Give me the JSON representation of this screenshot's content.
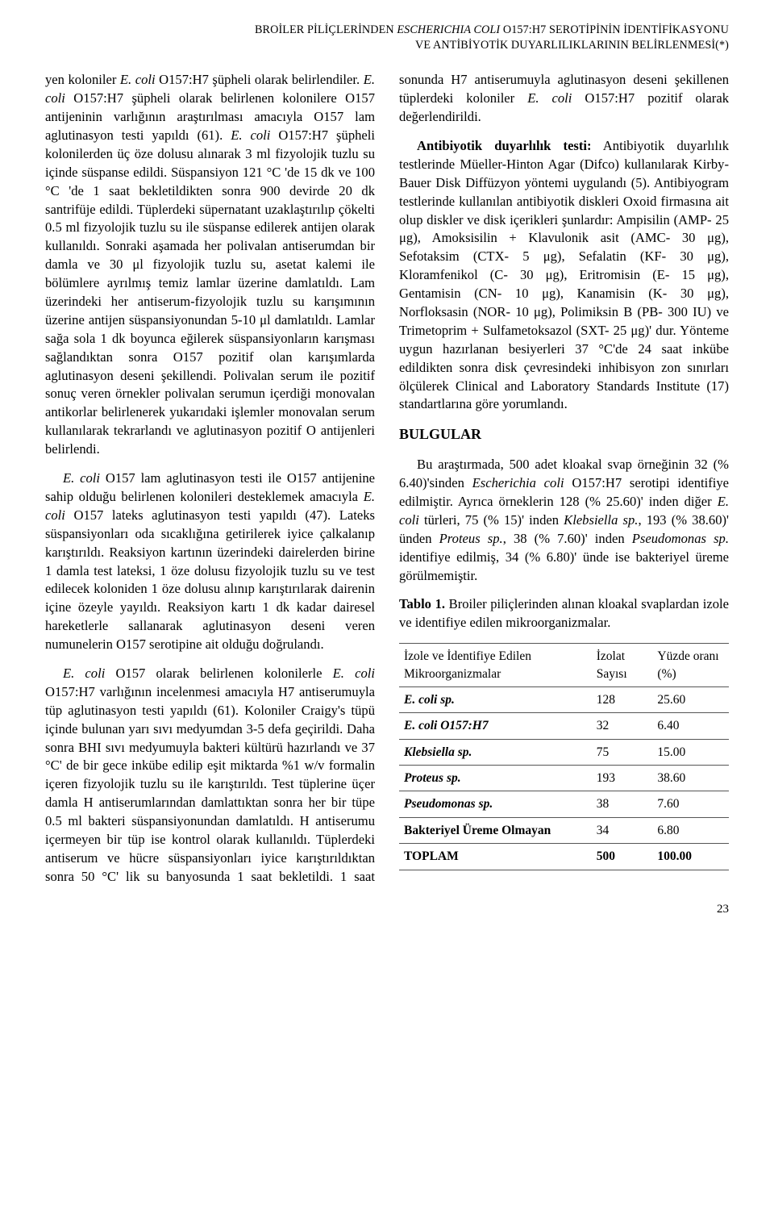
{
  "header": {
    "line1_pre": "BROİLER PİLİÇLERİNDEN ",
    "line1_italic": "ESCHERICHIA COLI",
    "line1_post": "  O157:H7 SEROTİPİNİN İDENTİFİKASYONU",
    "line2": "VE ANTİBİYOTİK DUYARLILIKLARININ BELİRLENMESİ(*)"
  },
  "paragraphs": {
    "p1_a": "yen koloniler ",
    "p1_b": "E. coli",
    "p1_c": " O157:H7 şüpheli olarak belirlendiler. ",
    "p1_d": "E. coli",
    "p1_e": " O157:H7 şüpheli olarak belirlenen kolonilere O157 antijeninin varlığının araştırılması amacıyla O157 lam aglutinasyon testi yapıldı (61). ",
    "p1_f": "E. coli",
    "p1_g": " O157:H7 şüpheli kolonilerden üç öze dolusu alınarak 3 ml fizyolojik tuzlu su içinde süspanse edildi. Süspansiyon 121 °C 'de 15 dk ve 100 °C 'de 1 saat bekletildikten sonra 900 devirde 20 dk santrifüje edildi. Tüplerdeki süpernatant uzaklaştırılıp çökelti 0.5 ml fizyolojik tuzlu su ile süspanse edilerek antijen olarak kullanıldı. Sonraki aşamada her polivalan antiserumdan bir damla ve 30 μl fizyolojik tuzlu su, asetat kalemi ile bölümlere ayrılmış temiz lamlar üzerine damlatıldı. Lam üzerindeki her antiserum-fizyolojik tuzlu su karışımının üzerine antijen süspansiyonundan 5-10 μl damlatıldı. Lamlar sağa sola 1 dk boyunca eğilerek süspansiyonların karışması sağlandıktan sonra O157 pozitif olan karışımlarda aglutinasyon deseni şekillendi. Polivalan serum ile pozitif sonuç veren örnekler polivalan serumun içerdiği monovalan antikorlar belirlenerek yukarıdaki işlemler monovalan serum kullanılarak tekrarlandı ve aglutinasyon pozitif O antijenleri belirlendi.",
    "p2_a": "E. coli",
    "p2_b": " O157 lam aglutinasyon testi ile O157 antijenine sahip olduğu belirlenen kolonileri desteklemek amacıyla ",
    "p2_c": "E. coli",
    "p2_d": " O157 lateks aglutinasyon testi yapıldı (47). Lateks süspansiyonları oda sıcaklığına getirilerek iyice çalkalanıp karıştırıldı. Reaksiyon kartının üzerindeki dairelerden birine 1 damla test lateksi, 1 öze dolusu fizyolojik tuzlu su ve test edilecek koloniden 1 öze dolusu alınıp karıştırılarak dairenin içine özeyle yayıldı. Reaksiyon kartı 1 dk kadar dairesel hareketlerle sallanarak aglutinasyon deseni veren numunelerin O157 serotipine ait olduğu doğrulandı.",
    "p3_a": "E. coli",
    "p3_b": " O157 olarak belirlenen kolonilerle ",
    "p3_c": "E. coli",
    "p3_d": " O157:H7 varlığının incelenmesi amacıyla H7 antiserumuyla tüp aglutinasyon testi yapıldı (61). Koloniler Craigy's tüpü içinde bulunan yarı sıvı medyumdan 3-5 defa geçirildi. Daha sonra BHI sıvı medyumuyla bakteri kültürü hazırlandı ve 37 °C' de bir gece inkübe edilip eşit miktarda %1 w/v formalin içeren fizyolojik tuzlu su ile karıştırıldı. Test tüplerine üçer damla H antiserumlarından damlattıktan sonra her bir tüpe 0.5 ml bakteri süspansiyonundan damlatıldı. H antiserumu içer",
    "p3_cont": "meyen bir tüp ise kontrol olarak kullanıldı. Tüplerdeki antiserum ve hücre süspansiyonları iyice karıştırıldıktan sonra 50 °C' lik su banyosunda 1 saat bekletildi. 1 saat sonunda H7 antiserumuyla aglutinasyon deseni şekillenen tüplerdeki koloniler ",
    "p3_e": "E. coli",
    "p3_f": " O157:H7 pozitif olarak değerlendirildi.",
    "p4_label": "Antibiyotik duyarlılık testi:",
    "p4_body": " Antibiyotik duyarlılık testlerinde Müeller-Hinton Agar (Difco) kullanılarak Kirby-Bauer Disk Diffüzyon yöntemi uygulandı (5). Antibiyogram testlerinde kullanılan antibiyotik diskleri Oxoid firmasına ait olup diskler ve disk içerikleri şunlardır: Ampisilin (AMP- 25 μg), Amoksisilin + Klavulonik asit (AMC- 30 μg), Sefotaksim (CTX- 5 μg), Sefalatin (KF- 30 μg), Kloramfenikol (C- 30 μg), Eritromisin (E- 15 μg), Gentamisin (CN- 10 μg), Kanamisin (K- 30 μg), Norfloksasin (NOR- 10 μg), Polimiksin B (PB- 300 IU) ve Trimetoprim + Sulfametoksazol (SXT- 25 μg)' dur. Yönteme uygun hazırlanan besiyerleri 37 °C'de 24 saat inkübe edildikten sonra disk çevresindeki inhibisyon zon sınırları ölçülerek Clinical and Laboratory Standards Institute (17) standartlarına göre yorumlandı.",
    "bulgular_heading": "BULGULAR",
    "p5_a": "Bu araştırmada, 500 adet kloakal svap örneğinin 32 (% 6.40)'sinden ",
    "p5_b": "Escherichia coli",
    "p5_c": " O157:H7 serotipi identifiye edilmiştir. Ayrıca örneklerin 128 (% 25.60)' inden diğer ",
    "p5_d": "E. coli",
    "p5_e": " türleri, 75 (% 15)' inden ",
    "p5_f": "Klebsiella sp.",
    "p5_g": ", 193 (% 38.60)' ünden ",
    "p5_h": "Proteus sp.",
    "p5_i": ", 38 (% 7.60)' inden ",
    "p5_j": "Pseudomonas sp.",
    "p5_k": " identifiye edilmiş, 34 (% 6.80)' ünde ise bakteriyel üreme görülmemiştir."
  },
  "table": {
    "caption_label": "Tablo 1.",
    "caption_text": " Broiler piliçlerinden alınan kloakal svaplardan izole ve identifiye edilen mikroorganizmalar.",
    "headers": {
      "col1": "İzole ve İdentifiye Edilen Mikroorganizmalar",
      "col2": "İzolat Sayısı",
      "col3": "Yüzde oranı (%)"
    },
    "rows": [
      {
        "name": "E. coli sp.",
        "isolate": "128",
        "percent": "25.60",
        "italic": true
      },
      {
        "name": "E. coli O157:H7",
        "isolate": "32",
        "percent": "6.40",
        "italic_partial": true
      },
      {
        "name": "Klebsiella sp.",
        "isolate": "75",
        "percent": "15.00",
        "italic": true
      },
      {
        "name": "Proteus sp.",
        "isolate": "193",
        "percent": "38.60",
        "italic": true
      },
      {
        "name": "Pseudomonas sp.",
        "isolate": "38",
        "percent": "7.60",
        "italic": true
      },
      {
        "name": "Bakteriyel Üreme Olmayan",
        "isolate": "34",
        "percent": "6.80",
        "italic": false
      },
      {
        "name": "TOPLAM",
        "isolate": "500",
        "percent": "100.00",
        "italic": false,
        "total": true
      }
    ]
  },
  "page_number": "23"
}
